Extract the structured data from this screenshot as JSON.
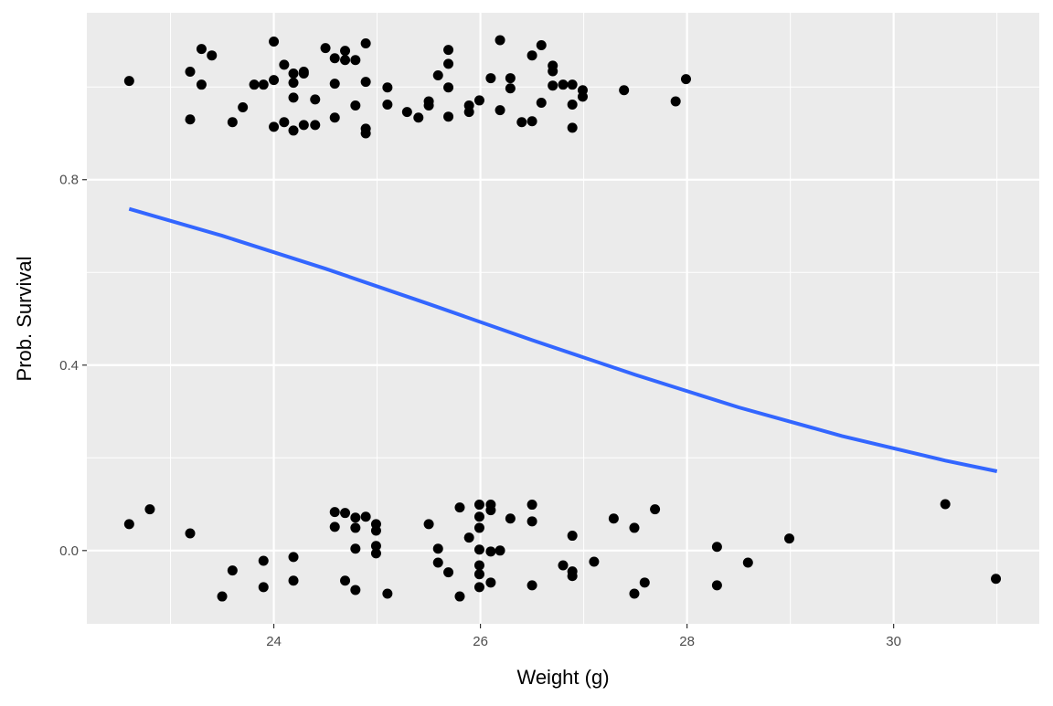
{
  "chart_data": {
    "type": "scatter",
    "title": "",
    "xlabel": "Weight (g)",
    "ylabel": "Prob. Survival",
    "xlim": [
      22.19,
      31.41
    ],
    "ylim": [
      -0.158,
      1.16
    ],
    "x_ticks": [
      24,
      26,
      28,
      30
    ],
    "x_tick_labels": [
      "24",
      "26",
      "28",
      "30"
    ],
    "y_ticks": [
      0.0,
      0.4,
      0.8
    ],
    "y_tick_labels": [
      "0.0",
      "0.4",
      "0.8"
    ],
    "x_minor_ticks": [
      23,
      25,
      27,
      29,
      31
    ],
    "y_minor_ticks": [
      0.2,
      0.6,
      1.0
    ],
    "grid": true,
    "panel_background": "#ebebeb",
    "point_color": "#000000",
    "line_color": "#3366ff",
    "points": [
      [
        22.6,
        1.013
      ],
      [
        23.19,
        1.033
      ],
      [
        23.19,
        0.93
      ],
      [
        23.3,
        1.082
      ],
      [
        23.3,
        1.005
      ],
      [
        23.4,
        1.068
      ],
      [
        23.6,
        0.924
      ],
      [
        23.7,
        0.956
      ],
      [
        23.81,
        1.005
      ],
      [
        23.9,
        1.005
      ],
      [
        24.0,
        1.098
      ],
      [
        24.0,
        0.914
      ],
      [
        24.0,
        1.015
      ],
      [
        24.1,
        1.048
      ],
      [
        24.1,
        0.924
      ],
      [
        24.19,
        1.029
      ],
      [
        24.19,
        0.906
      ],
      [
        24.19,
        0.977
      ],
      [
        24.19,
        1.009
      ],
      [
        24.29,
        1.033
      ],
      [
        24.29,
        1.029
      ],
      [
        24.29,
        0.918
      ],
      [
        24.4,
        0.918
      ],
      [
        24.4,
        0.973
      ],
      [
        24.5,
        1.084
      ],
      [
        24.59,
        1.062
      ],
      [
        24.59,
        1.007
      ],
      [
        24.59,
        0.934
      ],
      [
        24.69,
        1.078
      ],
      [
        24.69,
        1.058
      ],
      [
        24.79,
        1.058
      ],
      [
        24.79,
        0.96
      ],
      [
        24.89,
        1.094
      ],
      [
        24.89,
        1.011
      ],
      [
        24.89,
        0.91
      ],
      [
        24.89,
        0.9
      ],
      [
        25.1,
        0.999
      ],
      [
        25.1,
        0.962
      ],
      [
        25.29,
        0.946
      ],
      [
        25.4,
        0.934
      ],
      [
        25.5,
        0.969
      ],
      [
        25.5,
        0.96
      ],
      [
        25.59,
        1.025
      ],
      [
        25.69,
        1.08
      ],
      [
        25.69,
        1.05
      ],
      [
        25.69,
        0.999
      ],
      [
        25.69,
        0.936
      ],
      [
        25.89,
        0.96
      ],
      [
        25.89,
        0.946
      ],
      [
        25.99,
        0.971
      ],
      [
        26.1,
        1.019
      ],
      [
        26.19,
        1.101
      ],
      [
        26.19,
        0.95
      ],
      [
        26.29,
        1.019
      ],
      [
        26.29,
        0.997
      ],
      [
        26.4,
        0.924
      ],
      [
        26.5,
        1.068
      ],
      [
        26.5,
        0.926
      ],
      [
        26.59,
        1.09
      ],
      [
        26.59,
        0.966
      ],
      [
        26.7,
        1.046
      ],
      [
        26.7,
        1.034
      ],
      [
        26.7,
        1.003
      ],
      [
        26.8,
        1.005
      ],
      [
        26.89,
        1.005
      ],
      [
        26.89,
        0.962
      ],
      [
        26.89,
        0.912
      ],
      [
        26.99,
        0.993
      ],
      [
        26.99,
        0.979
      ],
      [
        27.39,
        0.993
      ],
      [
        27.89,
        0.969
      ],
      [
        27.99,
        1.017
      ],
      [
        22.6,
        0.057
      ],
      [
        22.8,
        0.089
      ],
      [
        23.19,
        0.037
      ],
      [
        23.5,
        -0.099
      ],
      [
        23.6,
        -0.043
      ],
      [
        23.9,
        -0.022
      ],
      [
        23.9,
        -0.079
      ],
      [
        24.19,
        -0.014
      ],
      [
        24.19,
        -0.065
      ],
      [
        24.59,
        0.083
      ],
      [
        24.59,
        0.051
      ],
      [
        24.69,
        0.081
      ],
      [
        24.69,
        -0.065
      ],
      [
        24.79,
        0.071
      ],
      [
        24.79,
        0.049
      ],
      [
        24.79,
        0.004
      ],
      [
        24.79,
        -0.085
      ],
      [
        24.89,
        0.073
      ],
      [
        24.99,
        0.057
      ],
      [
        24.99,
        0.043
      ],
      [
        24.99,
        0.01
      ],
      [
        24.99,
        -0.006
      ],
      [
        25.1,
        -0.093
      ],
      [
        25.5,
        0.057
      ],
      [
        25.59,
        0.004
      ],
      [
        25.59,
        -0.026
      ],
      [
        25.69,
        -0.047
      ],
      [
        25.8,
        0.093
      ],
      [
        25.8,
        -0.099
      ],
      [
        25.89,
        0.028
      ],
      [
        25.99,
        0.099
      ],
      [
        25.99,
        0.073
      ],
      [
        25.99,
        0.049
      ],
      [
        25.99,
        0.002
      ],
      [
        25.99,
        -0.032
      ],
      [
        25.99,
        -0.051
      ],
      [
        25.99,
        -0.079
      ],
      [
        26.1,
        0.099
      ],
      [
        26.1,
        0.087
      ],
      [
        26.1,
        -0.002
      ],
      [
        26.1,
        -0.069
      ],
      [
        26.19,
        0.0
      ],
      [
        26.29,
        0.069
      ],
      [
        26.5,
        0.099
      ],
      [
        26.5,
        0.063
      ],
      [
        26.5,
        -0.075
      ],
      [
        26.8,
        -0.032
      ],
      [
        26.89,
        0.032
      ],
      [
        26.89,
        -0.045
      ],
      [
        26.89,
        -0.055
      ],
      [
        27.1,
        -0.024
      ],
      [
        27.29,
        0.069
      ],
      [
        27.49,
        0.049
      ],
      [
        27.49,
        -0.093
      ],
      [
        27.59,
        -0.069
      ],
      [
        27.69,
        0.089
      ],
      [
        28.29,
        0.008
      ],
      [
        28.29,
        -0.075
      ],
      [
        28.59,
        -0.026
      ],
      [
        28.99,
        0.026
      ],
      [
        30.5,
        0.1
      ],
      [
        30.99,
        -0.061
      ]
    ],
    "fitted_curve": {
      "x": [
        22.6,
        23.5,
        24.5,
        25.5,
        26.5,
        27.5,
        28.5,
        29.5,
        30.5,
        31.0
      ],
      "y": [
        0.737,
        0.679,
        0.608,
        0.532,
        0.454,
        0.379,
        0.309,
        0.247,
        0.194,
        0.171
      ]
    }
  }
}
